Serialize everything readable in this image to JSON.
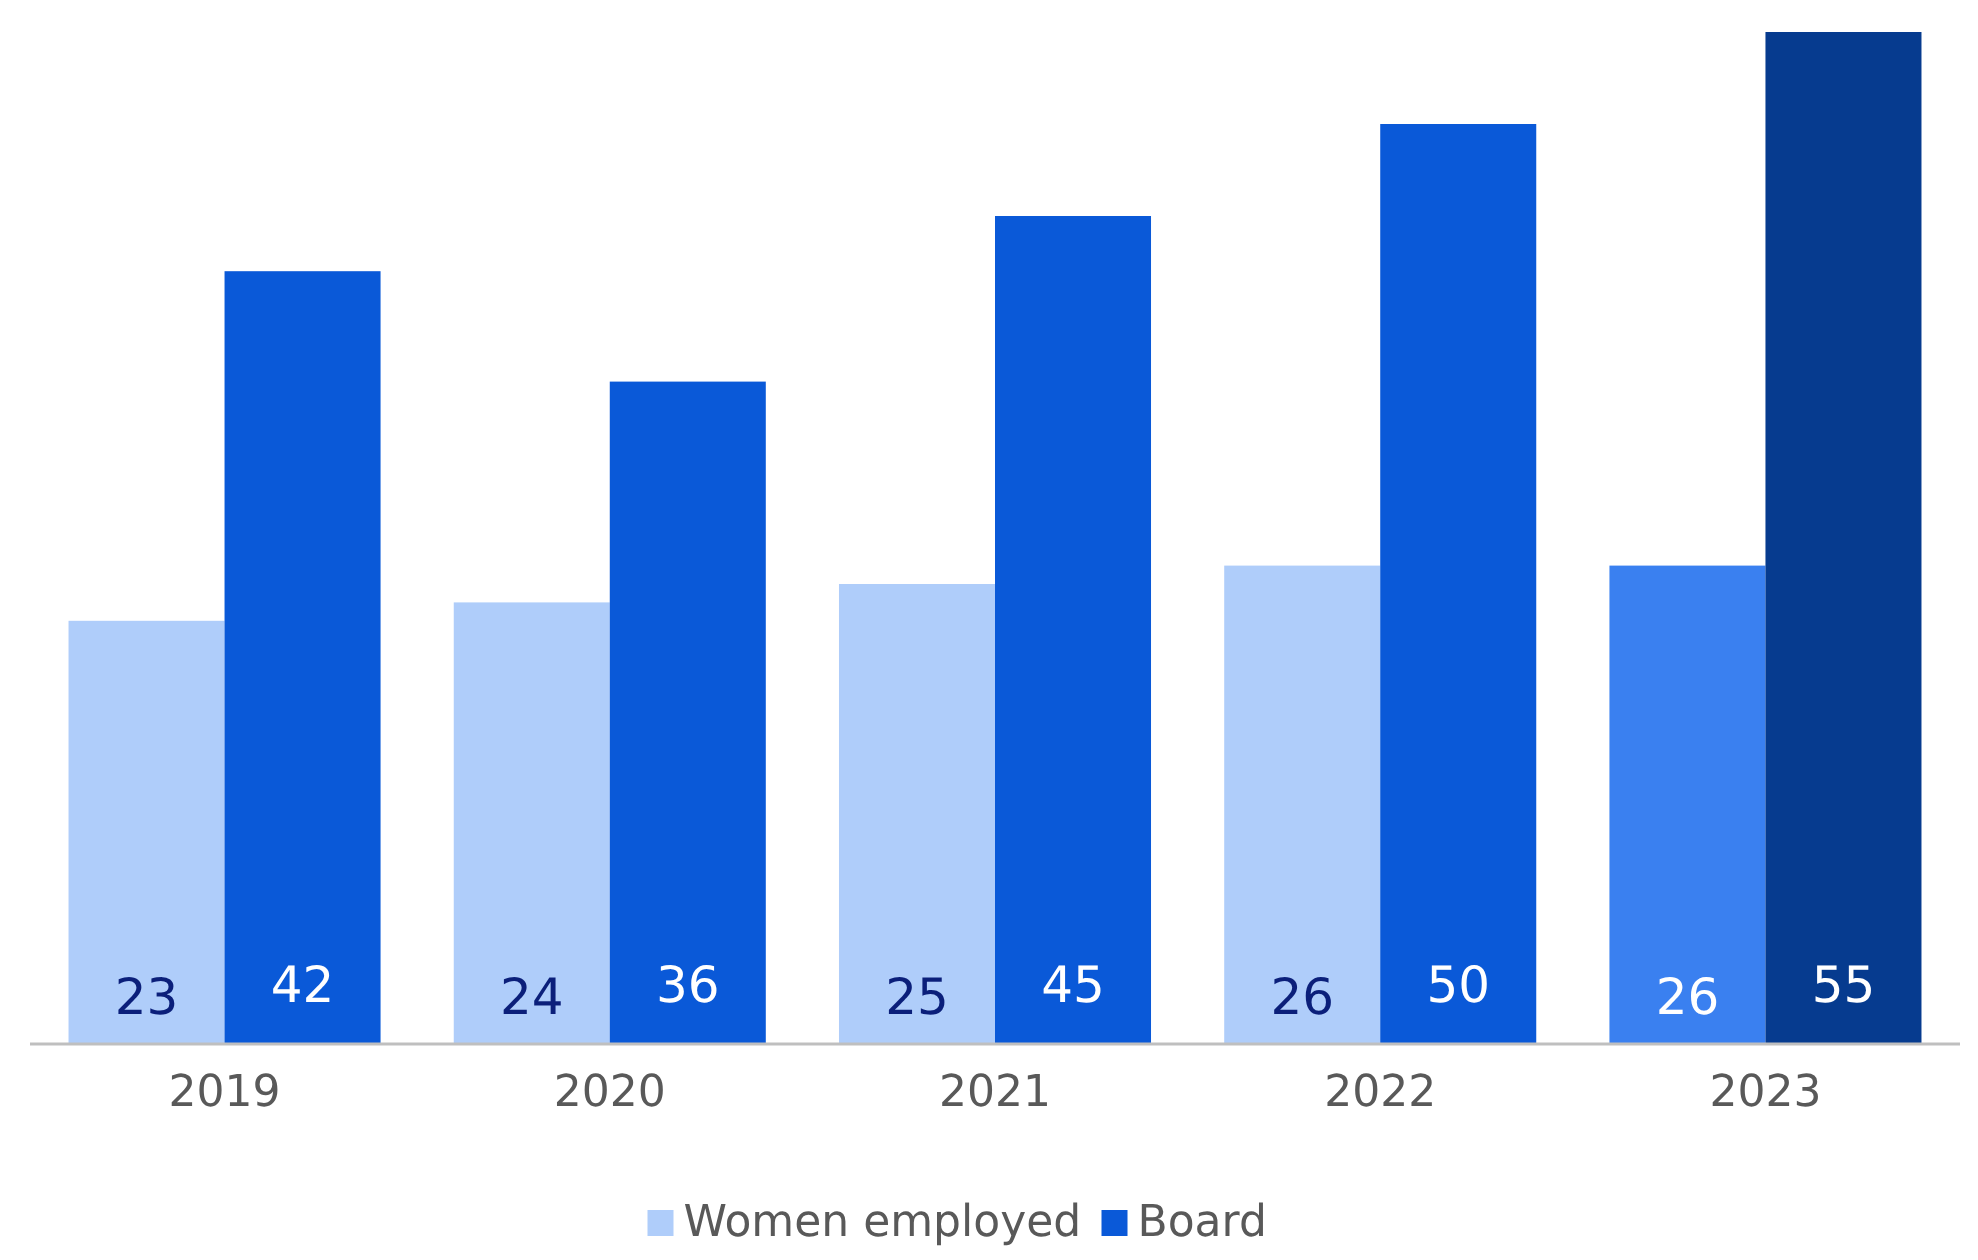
{
  "chart_data": {
    "type": "bar",
    "categories": [
      "2019",
      "2020",
      "2021",
      "2022",
      "2023"
    ],
    "series": [
      {
        "name": "Women employed",
        "color": "#afcdfa",
        "colors": [
          "#afcdfa",
          "#afcdfa",
          "#afcdfa",
          "#afcdfa",
          "#3a80f0"
        ],
        "values": [
          23,
          24,
          25,
          26,
          26
        ]
      },
      {
        "name": "Board",
        "color": "#0a59d8",
        "colors": [
          "#0a59d8",
          "#0a59d8",
          "#0a59d8",
          "#0a59d8",
          "#063b8f"
        ],
        "values": [
          42,
          36,
          45,
          50,
          55
        ]
      }
    ],
    "data_labels": true,
    "legend": "bottom"
  }
}
